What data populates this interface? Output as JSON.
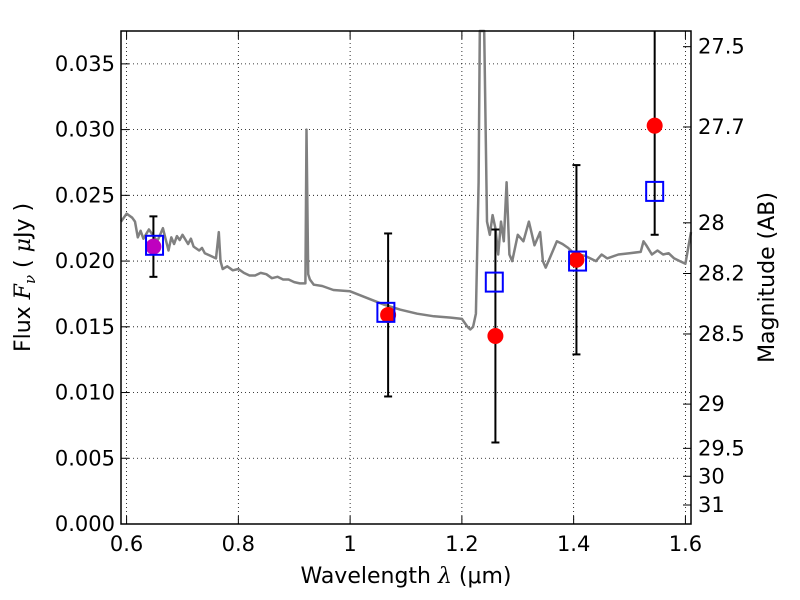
{
  "chart_data": {
    "type": "scatter",
    "title": "",
    "xlabel": {
      "pre": "Wavelength  ",
      "sym": "λ",
      "unit": " (μm)"
    },
    "ylabel": {
      "pre": "Flux  ",
      "sym": "F",
      "sub": "ν",
      "post": "  ( ",
      "mu": "μ",
      "unit": "Jy )"
    },
    "y2label": "Magnitude (AB)",
    "xlim": [
      0.59,
      1.61
    ],
    "ylim": [
      0.0,
      0.0375
    ],
    "grid": true,
    "x_ticks": [
      {
        "v": 0.6,
        "label": "0.6"
      },
      {
        "v": 0.8,
        "label": "0.8"
      },
      {
        "v": 1.0,
        "label": "1"
      },
      {
        "v": 1.2,
        "label": "1.2"
      },
      {
        "v": 1.4,
        "label": "1.4"
      },
      {
        "v": 1.6,
        "label": "1.6"
      }
    ],
    "y_ticks": [
      {
        "v": 0.0,
        "label": "0.000"
      },
      {
        "v": 0.005,
        "label": "0.005"
      },
      {
        "v": 0.01,
        "label": "0.010"
      },
      {
        "v": 0.015,
        "label": "0.015"
      },
      {
        "v": 0.02,
        "label": "0.020"
      },
      {
        "v": 0.025,
        "label": "0.025"
      },
      {
        "v": 0.03,
        "label": "0.030"
      },
      {
        "v": 0.035,
        "label": "0.035"
      }
    ],
    "y2_ticks": [
      {
        "v": 27.5,
        "label": "27.5"
      },
      {
        "v": 27.7,
        "label": "27.7"
      },
      {
        "v": 28.0,
        "label": "28"
      },
      {
        "v": 28.2,
        "label": "28.2"
      },
      {
        "v": 28.5,
        "label": "28.5"
      },
      {
        "v": 29.0,
        "label": "29"
      },
      {
        "v": 29.5,
        "label": "29.5"
      },
      {
        "v": 30.0,
        "label": "30"
      },
      {
        "v": 31.0,
        "label": "31"
      }
    ],
    "series": [
      {
        "type": "line",
        "color": "#808080",
        "x": [
          0.59,
          0.6,
          0.61,
          0.615,
          0.62,
          0.625,
          0.63,
          0.64,
          0.655,
          0.665,
          0.675,
          0.68,
          0.685,
          0.69,
          0.695,
          0.7,
          0.71,
          0.715,
          0.72,
          0.73,
          0.735,
          0.74,
          0.745,
          0.75,
          0.76,
          0.765,
          0.768,
          0.772,
          0.78,
          0.79,
          0.8,
          0.81,
          0.82,
          0.83,
          0.84,
          0.85,
          0.86,
          0.87,
          0.88,
          0.89,
          0.9,
          0.91,
          0.92,
          0.922,
          0.925,
          0.928,
          0.935,
          0.95,
          0.97,
          1.0,
          1.03,
          1.06,
          1.09,
          1.12,
          1.15,
          1.18,
          1.2,
          1.21,
          1.215,
          1.22,
          1.225,
          1.23,
          1.232,
          1.235,
          1.24,
          1.245,
          1.25,
          1.255,
          1.26,
          1.265,
          1.27,
          1.275,
          1.28,
          1.285,
          1.29,
          1.3,
          1.31,
          1.32,
          1.33,
          1.34,
          1.345,
          1.35,
          1.36,
          1.37,
          1.38,
          1.39,
          1.4,
          1.42,
          1.44,
          1.45,
          1.46,
          1.48,
          1.5,
          1.52,
          1.525,
          1.53,
          1.54,
          1.55,
          1.56,
          1.57,
          1.58,
          1.59,
          1.6,
          1.605,
          1.61
        ],
        "y": [
          0.023,
          0.0236,
          0.0233,
          0.023,
          0.0218,
          0.0223,
          0.0217,
          0.0224,
          0.0215,
          0.0225,
          0.0208,
          0.0218,
          0.0213,
          0.0219,
          0.0216,
          0.022,
          0.0213,
          0.0217,
          0.0211,
          0.0208,
          0.021,
          0.0206,
          0.0205,
          0.0204,
          0.0202,
          0.0222,
          0.02,
          0.0194,
          0.0196,
          0.0193,
          0.0194,
          0.0191,
          0.0189,
          0.0189,
          0.0191,
          0.019,
          0.0187,
          0.0188,
          0.0186,
          0.0186,
          0.0184,
          0.0183,
          0.0183,
          0.03,
          0.019,
          0.0186,
          0.0182,
          0.0181,
          0.0178,
          0.0177,
          0.0172,
          0.0167,
          0.0163,
          0.016,
          0.0158,
          0.0157,
          0.0156,
          0.015,
          0.0148,
          0.015,
          0.016,
          0.026,
          0.0375,
          0.0375,
          0.0375,
          0.023,
          0.022,
          0.0235,
          0.0225,
          0.0205,
          0.023,
          0.0215,
          0.026,
          0.0205,
          0.02,
          0.022,
          0.0215,
          0.023,
          0.0212,
          0.0222,
          0.02,
          0.0195,
          0.0205,
          0.0215,
          0.0213,
          0.021,
          0.0206,
          0.0204,
          0.02,
          0.0205,
          0.0202,
          0.0205,
          0.0206,
          0.0207,
          0.0215,
          0.0212,
          0.0205,
          0.0208,
          0.0205,
          0.0206,
          0.0202,
          0.02,
          0.0198,
          0.021,
          0.0222
        ]
      },
      {
        "type": "points",
        "marker": "circle",
        "color": "#ff0000",
        "x": [
          0.648,
          1.068,
          1.26,
          1.405,
          1.545
        ],
        "y": [
          0.0211,
          0.0159,
          0.0143,
          0.0201,
          0.0303
        ],
        "yerr": [
          0.0023,
          0.0062,
          0.0081,
          0.0072,
          0.0083
        ]
      },
      {
        "type": "points",
        "marker": "square-open",
        "color": "#0000ff",
        "x": [
          0.65,
          1.064,
          1.258,
          1.407,
          1.545
        ],
        "y": [
          0.0212,
          0.0161,
          0.0184,
          0.02,
          0.0253
        ]
      }
    ],
    "overlap_point_color": "#bf00bf"
  }
}
